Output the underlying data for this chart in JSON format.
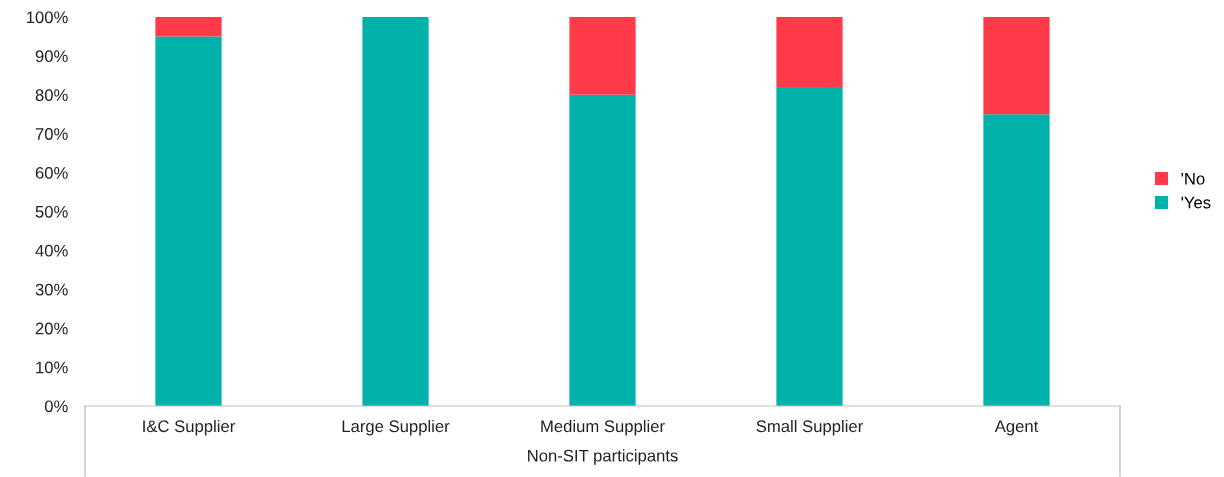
{
  "chart_data": {
    "type": "bar",
    "stacked": true,
    "xlabel": "Non-SIT participants",
    "categories": [
      "I&C Supplier",
      "Large Supplier",
      "Medium Supplier",
      "Small Supplier",
      "Agent"
    ],
    "series": [
      {
        "name": "'Yes",
        "color": "#00b2a9",
        "values": [
          95,
          100,
          80,
          82,
          75
        ]
      },
      {
        "name": "'No",
        "color": "#ff3b4a",
        "values": [
          5,
          0,
          20,
          18,
          25
        ]
      }
    ],
    "ylim": [
      0,
      100
    ],
    "yticks": [
      {
        "value": 0,
        "label": "0%"
      },
      {
        "value": 10,
        "label": "10%"
      },
      {
        "value": 20,
        "label": "20%"
      },
      {
        "value": 30,
        "label": "30%"
      },
      {
        "value": 40,
        "label": "40%"
      },
      {
        "value": 50,
        "label": "50%"
      },
      {
        "value": 60,
        "label": "60%"
      },
      {
        "value": 70,
        "label": "70%"
      },
      {
        "value": 80,
        "label": "80%"
      },
      {
        "value": 90,
        "label": "90%"
      },
      {
        "value": 100,
        "label": "100%"
      }
    ],
    "legend": "right",
    "grid": false
  }
}
